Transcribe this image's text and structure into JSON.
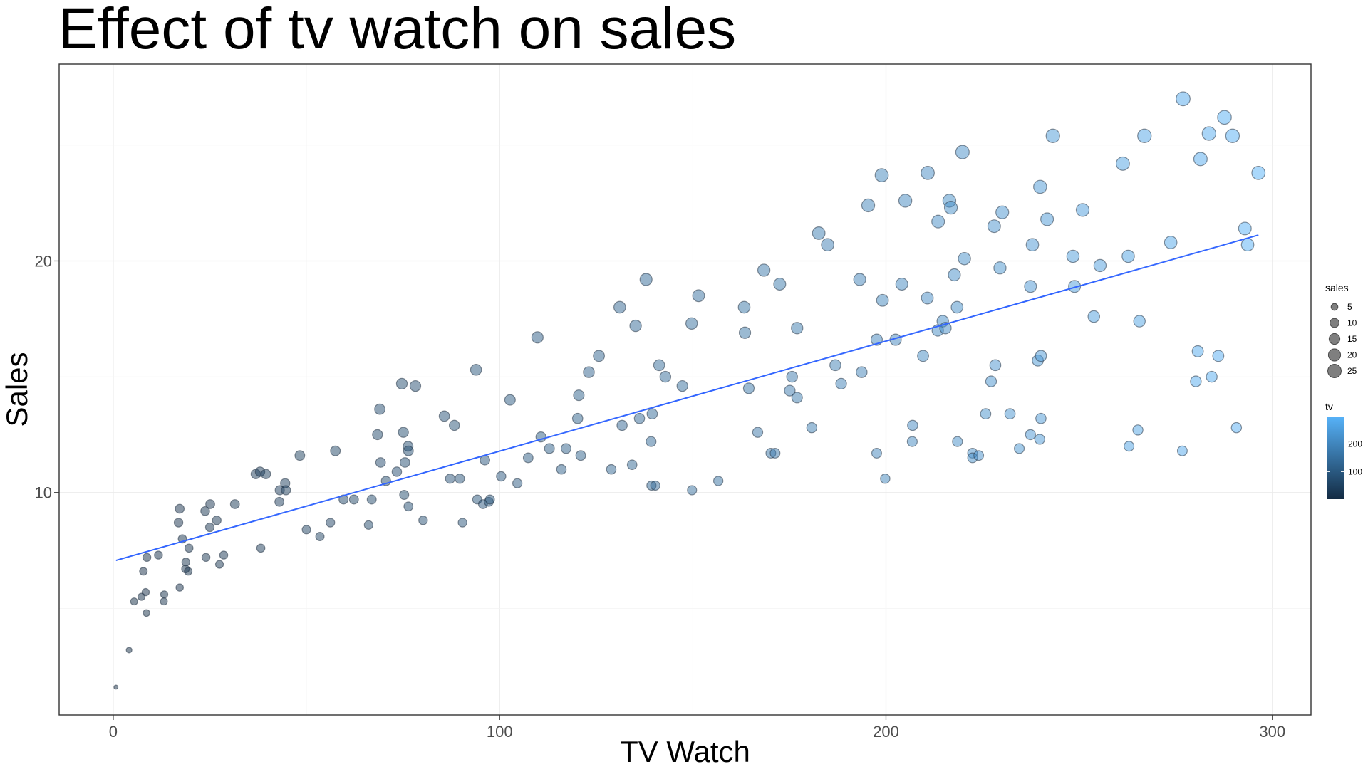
{
  "chart_data": {
    "type": "scatter",
    "title": "Effect of tv watch on sales",
    "xlabel": "TV Watch",
    "ylabel": "Sales",
    "xlim": [
      -14,
      310
    ],
    "ylim": [
      0.4,
      28.5
    ],
    "xticks": [
      0,
      100,
      200,
      300
    ],
    "yticks": [
      10,
      20
    ],
    "xtick_labels": [
      "0",
      "100",
      "200",
      "300"
    ],
    "ytick_labels": [
      "10",
      "20"
    ],
    "grid": true,
    "point_opacity": 0.5,
    "color_low": "#132b43",
    "color_high": "#56b1f7",
    "size_range": [
      1,
      26.9
    ],
    "points": [
      [
        0.7,
        1.6
      ],
      [
        4.1,
        3.2
      ],
      [
        5.4,
        5.3
      ],
      [
        7.3,
        5.5
      ],
      [
        7.8,
        6.6
      ],
      [
        8.4,
        5.7
      ],
      [
        8.6,
        4.8
      ],
      [
        8.7,
        7.2
      ],
      [
        11.7,
        7.3
      ],
      [
        13.1,
        5.3
      ],
      [
        13.2,
        5.6
      ],
      [
        16.9,
        8.7
      ],
      [
        17.2,
        5.9
      ],
      [
        17.2,
        9.3
      ],
      [
        17.9,
        8.0
      ],
      [
        18.7,
        6.7
      ],
      [
        18.8,
        7.0
      ],
      [
        19.4,
        6.6
      ],
      [
        19.6,
        7.6
      ],
      [
        23.8,
        9.2
      ],
      [
        24.0,
        7.2
      ],
      [
        25.0,
        8.5
      ],
      [
        25.1,
        9.5
      ],
      [
        26.8,
        8.8
      ],
      [
        27.5,
        6.9
      ],
      [
        28.6,
        7.3
      ],
      [
        31.5,
        9.5
      ],
      [
        36.9,
        10.8
      ],
      [
        38.0,
        10.9
      ],
      [
        38.2,
        7.6
      ],
      [
        39.5,
        10.8
      ],
      [
        43.0,
        9.6
      ],
      [
        43.1,
        10.1
      ],
      [
        44.5,
        10.4
      ],
      [
        44.7,
        10.1
      ],
      [
        48.3,
        11.6
      ],
      [
        50.0,
        8.4
      ],
      [
        53.5,
        8.1
      ],
      [
        56.2,
        8.7
      ],
      [
        57.5,
        11.8
      ],
      [
        59.6,
        9.7
      ],
      [
        62.3,
        9.7
      ],
      [
        66.1,
        8.6
      ],
      [
        66.9,
        9.7
      ],
      [
        68.4,
        12.5
      ],
      [
        69.0,
        13.6
      ],
      [
        69.2,
        11.3
      ],
      [
        70.6,
        10.5
      ],
      [
        73.4,
        10.9
      ],
      [
        74.7,
        14.7
      ],
      [
        75.1,
        12.6
      ],
      [
        75.3,
        9.9
      ],
      [
        75.5,
        11.3
      ],
      [
        76.3,
        12.0
      ],
      [
        76.4,
        9.4
      ],
      [
        76.4,
        11.8
      ],
      [
        78.2,
        14.6
      ],
      [
        80.2,
        8.8
      ],
      [
        85.7,
        13.3
      ],
      [
        87.2,
        10.6
      ],
      [
        88.3,
        12.9
      ],
      [
        89.7,
        10.6
      ],
      [
        90.4,
        8.7
      ],
      [
        93.9,
        15.3
      ],
      [
        94.2,
        9.7
      ],
      [
        95.7,
        9.5
      ],
      [
        96.2,
        11.4
      ],
      [
        97.2,
        9.6
      ],
      [
        97.5,
        9.7
      ],
      [
        100.4,
        10.7
      ],
      [
        102.7,
        14.0
      ],
      [
        104.6,
        10.4
      ],
      [
        107.4,
        11.5
      ],
      [
        109.8,
        16.7
      ],
      [
        110.7,
        12.4
      ],
      [
        112.9,
        11.9
      ],
      [
        116.0,
        11.0
      ],
      [
        117.2,
        11.9
      ],
      [
        120.2,
        13.2
      ],
      [
        120.5,
        14.2
      ],
      [
        121.0,
        11.6
      ],
      [
        123.1,
        15.2
      ],
      [
        125.7,
        15.9
      ],
      [
        128.9,
        11.0
      ],
      [
        131.1,
        18.0
      ],
      [
        131.7,
        12.9
      ],
      [
        134.3,
        11.2
      ],
      [
        135.2,
        17.2
      ],
      [
        136.2,
        13.2
      ],
      [
        137.9,
        19.2
      ],
      [
        139.2,
        12.2
      ],
      [
        139.3,
        10.3
      ],
      [
        139.5,
        13.4
      ],
      [
        140.3,
        10.3
      ],
      [
        141.3,
        15.5
      ],
      [
        142.9,
        15.0
      ],
      [
        147.3,
        14.6
      ],
      [
        149.7,
        17.3
      ],
      [
        149.8,
        10.1
      ],
      [
        151.5,
        18.5
      ],
      [
        156.6,
        10.5
      ],
      [
        163.3,
        18.0
      ],
      [
        163.5,
        16.9
      ],
      [
        164.5,
        14.5
      ],
      [
        166.8,
        12.6
      ],
      [
        168.4,
        19.6
      ],
      [
        170.2,
        11.7
      ],
      [
        171.3,
        11.7
      ],
      [
        172.5,
        19.0
      ],
      [
        175.1,
        14.4
      ],
      [
        175.7,
        15.0
      ],
      [
        177.0,
        14.1
      ],
      [
        177.0,
        17.1
      ],
      [
        180.8,
        12.8
      ],
      [
        182.6,
        21.2
      ],
      [
        184.9,
        20.7
      ],
      [
        186.9,
        15.5
      ],
      [
        188.4,
        14.7
      ],
      [
        193.2,
        19.2
      ],
      [
        193.7,
        15.2
      ],
      [
        195.4,
        22.4
      ],
      [
        197.6,
        11.7
      ],
      [
        197.6,
        16.6
      ],
      [
        198.9,
        23.7
      ],
      [
        199.1,
        18.3
      ],
      [
        199.8,
        10.6
      ],
      [
        202.5,
        16.6
      ],
      [
        204.1,
        19.0
      ],
      [
        205.0,
        22.6
      ],
      [
        206.8,
        12.2
      ],
      [
        206.9,
        12.9
      ],
      [
        209.6,
        15.9
      ],
      [
        210.7,
        18.4
      ],
      [
        210.8,
        23.8
      ],
      [
        213.4,
        17.0
      ],
      [
        213.5,
        21.7
      ],
      [
        214.7,
        17.4
      ],
      [
        215.4,
        17.1
      ],
      [
        216.4,
        22.6
      ],
      [
        216.8,
        22.3
      ],
      [
        217.7,
        19.4
      ],
      [
        218.4,
        18.0
      ],
      [
        218.5,
        12.2
      ],
      [
        219.8,
        24.7
      ],
      [
        220.3,
        20.1
      ],
      [
        222.4,
        11.7
      ],
      [
        222.4,
        11.5
      ],
      [
        224.0,
        11.6
      ],
      [
        225.8,
        13.4
      ],
      [
        227.2,
        14.8
      ],
      [
        228.0,
        21.5
      ],
      [
        228.3,
        15.5
      ],
      [
        229.5,
        19.7
      ],
      [
        230.1,
        22.1
      ],
      [
        232.1,
        13.4
      ],
      [
        234.5,
        11.9
      ],
      [
        237.4,
        12.5
      ],
      [
        237.4,
        18.9
      ],
      [
        237.9,
        20.7
      ],
      [
        239.3,
        15.7
      ],
      [
        239.8,
        12.3
      ],
      [
        239.9,
        23.2
      ],
      [
        240.1,
        13.2
      ],
      [
        240.1,
        15.9
      ],
      [
        241.7,
        21.8
      ],
      [
        243.2,
        25.4
      ],
      [
        248.4,
        20.2
      ],
      [
        248.8,
        18.9
      ],
      [
        250.9,
        22.2
      ],
      [
        253.8,
        17.6
      ],
      [
        255.4,
        19.8
      ],
      [
        261.3,
        24.2
      ],
      [
        262.7,
        20.2
      ],
      [
        262.9,
        12.0
      ],
      [
        265.2,
        12.7
      ],
      [
        265.6,
        17.4
      ],
      [
        266.9,
        25.4
      ],
      [
        273.7,
        20.8
      ],
      [
        276.7,
        11.8
      ],
      [
        276.9,
        27.0
      ],
      [
        280.2,
        14.8
      ],
      [
        280.7,
        16.1
      ],
      [
        281.4,
        24.4
      ],
      [
        283.6,
        25.5
      ],
      [
        284.3,
        15.0
      ],
      [
        286.0,
        15.9
      ],
      [
        287.6,
        26.2
      ],
      [
        289.7,
        25.4
      ],
      [
        290.7,
        12.8
      ],
      [
        292.9,
        21.4
      ],
      [
        293.6,
        20.7
      ],
      [
        296.4,
        23.8
      ]
    ],
    "fit_line": [
      [
        0.7,
        7.07
      ],
      [
        296.4,
        21.12
      ]
    ],
    "legend": {
      "size": {
        "title": "sales",
        "entries": [
          5,
          10,
          15,
          20,
          25
        ],
        "labels": [
          "5",
          "10",
          "15",
          "20",
          "25"
        ],
        "placement": "right"
      },
      "color": {
        "title": "tv",
        "labels": [
          "100",
          "200"
        ],
        "values": [
          100,
          200
        ],
        "range": [
          0.7,
          296.4
        ],
        "placement": "right"
      }
    }
  }
}
